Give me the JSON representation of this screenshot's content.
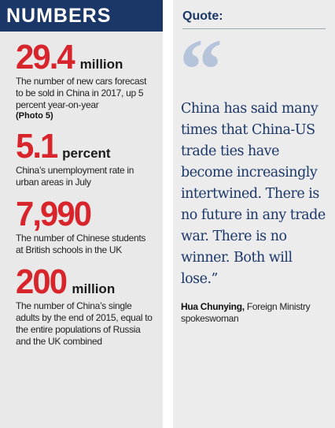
{
  "numbers": {
    "title": "NUMBERS",
    "items": [
      {
        "figure": "29.4",
        "unit": "million",
        "description": "The number of new cars forecast to be sold in China in 2017, up 5 percent year-on-year",
        "note": "(Photo 5)"
      },
      {
        "figure": "5.1",
        "unit": "percent",
        "description": "China’s unemployment rate in urban areas in July"
      },
      {
        "figure": "7,990",
        "description": "The number of Chinese students at British schools in the UK"
      },
      {
        "figure": "200",
        "unit": "million",
        "description": "The number of China’s single adults by the end of 2015, equal to the entire populations of Russia and the UK combined"
      }
    ]
  },
  "quote": {
    "label": "Quote:",
    "mark": "“",
    "text": "China has said many times that China-US trade ties have become increasingly intertwined. There is no future in any trade war. There is no winner. Both will lose.”",
    "speaker": "Hua Chunying,",
    "role": "Foreign Ministry spokeswoman"
  }
}
